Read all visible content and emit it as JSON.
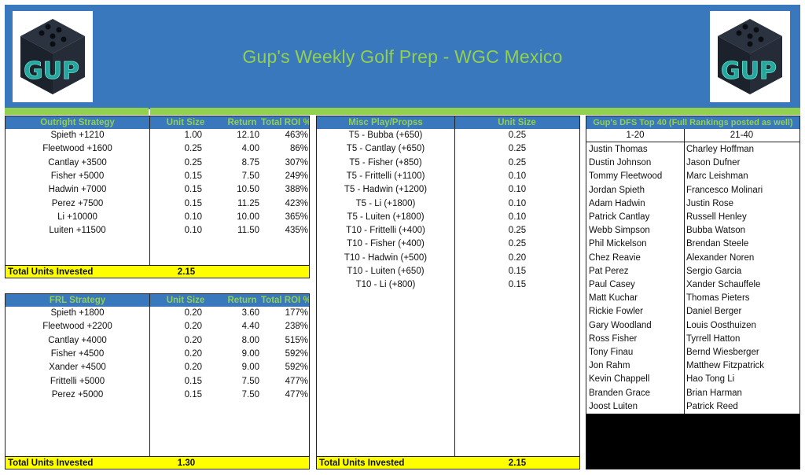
{
  "header": {
    "title": "Gup's Weekly Golf Prep - WGC Mexico",
    "logo_text": "GUP",
    "colors": {
      "banner": "#3a78bd",
      "title": "#92d050"
    }
  },
  "outright": {
    "headers": [
      "Outright Strategy",
      "Unit Size",
      "Return",
      "Total ROI %"
    ],
    "rows": [
      [
        "Spieth  +1210",
        "1.00",
        "12.10",
        "463%"
      ],
      [
        "Fleetwood +1600",
        "0.25",
        "4.00",
        "86%"
      ],
      [
        "Cantlay +3500",
        "0.25",
        "8.75",
        "307%"
      ],
      [
        "Fisher +5000",
        "0.15",
        "7.50",
        "249%"
      ],
      [
        "Hadwin +7000",
        "0.15",
        "10.50",
        "388%"
      ],
      [
        "Perez +7500",
        "0.15",
        "11.25",
        "423%"
      ],
      [
        "Li +10000",
        "0.10",
        "10.00",
        "365%"
      ],
      [
        "Luiten +11500",
        "0.10",
        "11.50",
        "435%"
      ]
    ],
    "total_label": "Total Units Invested",
    "total_value": "2.15"
  },
  "frl": {
    "headers": [
      "FRL Strategy",
      "Unit Size",
      "Return",
      "Total ROI %"
    ],
    "rows": [
      [
        "Spieth  +1800",
        "0.20",
        "3.60",
        "177%"
      ],
      [
        "Fleetwood +2200",
        "0.20",
        "4.40",
        "238%"
      ],
      [
        "Cantlay +4000",
        "0.20",
        "8.00",
        "515%"
      ],
      [
        "Fisher +4500",
        "0.20",
        "9.00",
        "592%"
      ],
      [
        "Xander +4500",
        "0.20",
        "9.00",
        "592%"
      ],
      [
        "Frittelli +5000",
        "0.15",
        "7.50",
        "477%"
      ],
      [
        "Perez +5000",
        "0.15",
        "7.50",
        "477%"
      ]
    ],
    "total_label": "Total Units Invested",
    "total_value": "1.30"
  },
  "misc": {
    "headers": [
      "Misc Play/Propss",
      "Unit Size"
    ],
    "rows": [
      [
        "T5 - Bubba (+650)",
        "0.25"
      ],
      [
        "T5 - Cantlay (+650)",
        "0.25"
      ],
      [
        "T5 - Fisher (+850)",
        "0.25"
      ],
      [
        "T5 - Frittelli (+1100)",
        "0.10"
      ],
      [
        "T5 - Hadwin (+1200)",
        "0.10"
      ],
      [
        "T5 - Li (+1800)",
        "0.10"
      ],
      [
        "T5 - Luiten (+1800)",
        "0.10"
      ],
      [
        "T10 - Frittelli (+400)",
        "0.25"
      ],
      [
        "T10 - Fisher (+400)",
        "0.25"
      ],
      [
        "T10 - Hadwin (+500)",
        "0.20"
      ],
      [
        "T10 - Luiten (+650)",
        "0.15"
      ],
      [
        "T10 - Li (+800)",
        "0.15"
      ]
    ],
    "total_label": "Total Units Invested",
    "total_value": "2.15"
  },
  "dfs": {
    "title": "Gup's DFS Top 40 (Full Rankings posted as well)",
    "col_headers": [
      "1-20",
      "21-40"
    ],
    "col1": [
      "Justin Thomas",
      "Dustin Johnson",
      "Tommy Fleetwood",
      "Jordan Spieth",
      "Adam Hadwin",
      "Patrick Cantlay",
      "Webb Simpson",
      "Phil Mickelson",
      "Chez Reavie",
      "Pat Perez",
      "Paul Casey",
      "Matt Kuchar",
      "Rickie Fowler",
      "Gary Woodland",
      "Ross Fisher",
      "Tony Finau",
      "Jon Rahm",
      "Kevin Chappell",
      "Branden Grace",
      "Joost Luiten"
    ],
    "col2": [
      "Charley Hoffman",
      "Jason Dufner",
      "Marc Leishman",
      "Francesco Molinari",
      "Justin Rose",
      "Russell Henley",
      "Bubba Watson",
      "Brendan Steele",
      "Alexander Noren",
      "Sergio Garcia",
      "Xander Schauffele",
      "Thomas Pieters",
      "Daniel Berger",
      "Louis Oosthuizen",
      "Tyrrell Hatton",
      "Bernd Wiesberger",
      "Matthew Fitzpatrick",
      "Hao Tong Li",
      "Brian Harman",
      "Patrick Reed"
    ]
  }
}
